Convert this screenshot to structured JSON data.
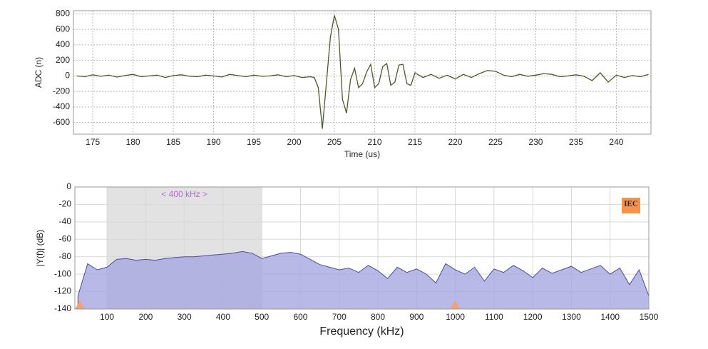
{
  "chart_data": [
    {
      "type": "line",
      "xlabel": "Time (us)",
      "ylabel": "ADC (n)",
      "color": "#4b5a2c",
      "grid": "dotted",
      "xlim": [
        172.6,
        244.3
      ],
      "ylim": [
        -750,
        840
      ],
      "xticks": [
        175,
        180,
        185,
        190,
        195,
        200,
        205,
        210,
        215,
        220,
        225,
        230,
        235,
        240
      ],
      "yticks": [
        -600,
        -400,
        -200,
        0,
        200,
        400,
        600,
        800
      ],
      "x": [
        173,
        174,
        175,
        176,
        177,
        178,
        179,
        180,
        181,
        182,
        183,
        184,
        185,
        186,
        187,
        188,
        189,
        190,
        191,
        192,
        193,
        194,
        195,
        196,
        197,
        198,
        199,
        200,
        201,
        202,
        202.5,
        203,
        203.5,
        204,
        204.5,
        205,
        205.5,
        206,
        206.5,
        207,
        207.5,
        208,
        208.5,
        209,
        209.5,
        210,
        210.5,
        211,
        211.5,
        212,
        212.5,
        213,
        213.5,
        214,
        214.5,
        215,
        215.5,
        216,
        217,
        218,
        219,
        220,
        221,
        222,
        223,
        224,
        225,
        226,
        227,
        228,
        229,
        230,
        231,
        232,
        233,
        234,
        235,
        236,
        237,
        238,
        239,
        240,
        241,
        242,
        243,
        244
      ],
      "values": [
        0,
        -10,
        15,
        -5,
        10,
        -15,
        5,
        20,
        -10,
        0,
        10,
        -20,
        5,
        15,
        -5,
        -10,
        10,
        0,
        -15,
        20,
        5,
        -10,
        10,
        -5,
        0,
        15,
        -10,
        5,
        -20,
        -10,
        -20,
        -150,
        -680,
        -100,
        500,
        780,
        600,
        -300,
        -480,
        -50,
        100,
        -150,
        -100,
        50,
        150,
        -150,
        -100,
        120,
        160,
        -120,
        -80,
        140,
        150,
        -100,
        -120,
        40,
        10,
        -20,
        20,
        -30,
        10,
        -40,
        20,
        -20,
        30,
        70,
        60,
        10,
        -10,
        20,
        -5,
        10,
        30,
        20,
        -10,
        0,
        15,
        -5,
        -60,
        40,
        -80,
        10,
        -20,
        5,
        -10,
        20
      ]
    },
    {
      "type": "area",
      "xlabel": "Frequency (kHz)",
      "ylabel": "|Y(f)| (dB)",
      "color": "#a8a8e2",
      "line_color": "#4d4d9a",
      "grid": "solid",
      "xlim": [
        17,
        1500
      ],
      "ylim": [
        -140,
        0
      ],
      "xticks": [
        100,
        200,
        300,
        400,
        500,
        600,
        700,
        800,
        900,
        1000,
        1100,
        1200,
        1300,
        1400,
        1500
      ],
      "yticks": [
        -140,
        -120,
        -100,
        -80,
        -60,
        -40,
        -20,
        0
      ],
      "band": {
        "range": [
          100,
          500
        ],
        "label": "< 400 kHz >"
      },
      "markers": [
        30,
        1000
      ],
      "marker_color": "#f5a070",
      "badge": "IEC",
      "x": [
        25,
        50,
        75,
        100,
        125,
        150,
        175,
        200,
        225,
        250,
        275,
        300,
        325,
        350,
        375,
        400,
        425,
        450,
        475,
        500,
        525,
        550,
        575,
        600,
        625,
        650,
        675,
        700,
        725,
        750,
        775,
        800,
        825,
        850,
        875,
        900,
        925,
        950,
        975,
        1000,
        1025,
        1050,
        1075,
        1100,
        1125,
        1150,
        1175,
        1200,
        1225,
        1250,
        1275,
        1300,
        1325,
        1350,
        1375,
        1400,
        1425,
        1450,
        1475,
        1500
      ],
      "values": [
        -125,
        -88,
        -95,
        -92,
        -83,
        -82,
        -84,
        -83,
        -84,
        -82,
        -81,
        -80,
        -80,
        -79,
        -78,
        -77,
        -76,
        -74,
        -76,
        -82,
        -79,
        -76,
        -75,
        -77,
        -83,
        -89,
        -92,
        -95,
        -93,
        -98,
        -90,
        -96,
        -105,
        -92,
        -98,
        -94,
        -100,
        -110,
        -88,
        -95,
        -100,
        -92,
        -108,
        -94,
        -98,
        -90,
        -96,
        -104,
        -93,
        -99,
        -95,
        -91,
        -98,
        -94,
        -90,
        -100,
        -93,
        -112,
        -95,
        -125
      ]
    }
  ]
}
